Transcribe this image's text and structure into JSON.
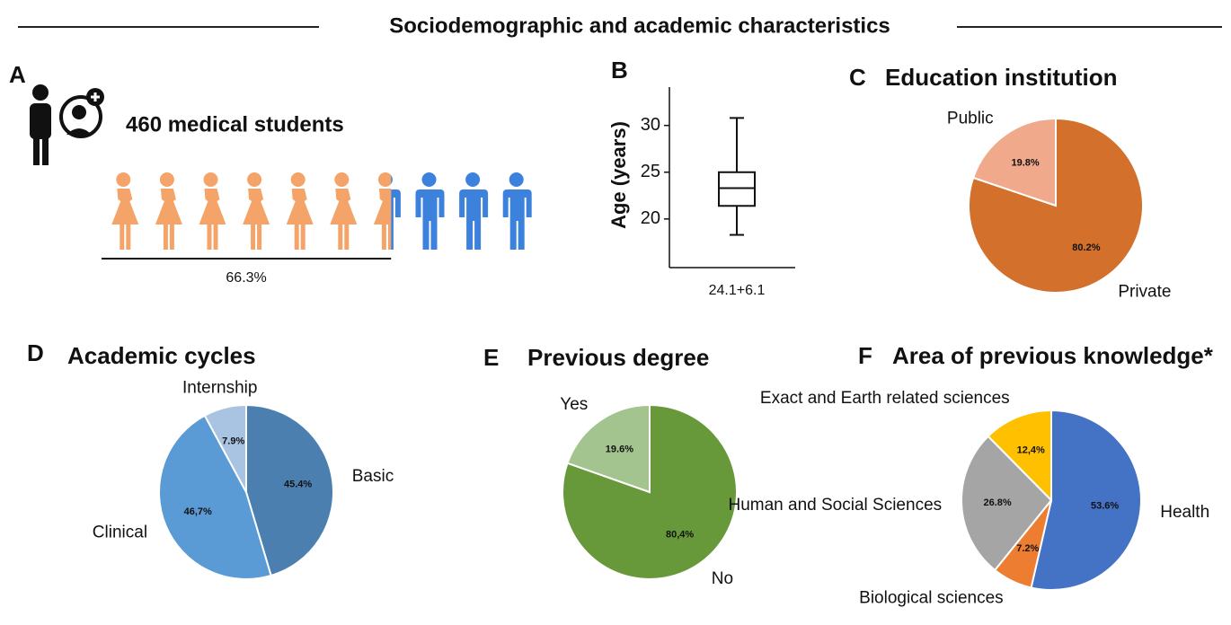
{
  "title": "Sociodemographic and academic characteristics",
  "chart_data": [
    {
      "type": "pictogram",
      "panel": "A",
      "title": "460 medical students",
      "values": [
        66.3
      ],
      "value_labels": [
        "66.3%"
      ],
      "colors": [
        "#f4a469",
        "#3c82dc"
      ]
    },
    {
      "type": "box",
      "panel": "B",
      "ylabel": "Age (years)",
      "annotation": "24.1+6.1",
      "boxes": [
        {
          "whislo": 18.3,
          "q1": 21.4,
          "med": 23.3,
          "q3": 25,
          "whishi": 30.8
        }
      ],
      "ylim": [
        14.8,
        34.1
      ],
      "yticks": [
        20,
        25,
        30
      ]
    },
    {
      "type": "pie",
      "panel": "C",
      "title": "Education institution",
      "categories": [
        "Private",
        "Public"
      ],
      "values": [
        80.2,
        19.8
      ],
      "value_labels": [
        "80.2%",
        "19.8%"
      ],
      "colors": [
        "#d2702c",
        "#f0a98a"
      ]
    },
    {
      "type": "pie",
      "panel": "D",
      "title": "Academic cycles",
      "categories": [
        "Basic",
        "Clinical",
        "Internship"
      ],
      "values": [
        45.4,
        46.7,
        7.9
      ],
      "value_labels": [
        "45.4%",
        "46,7%",
        "7.9%"
      ],
      "colors": [
        "#4a7fb0",
        "#5b9bd5",
        "#a9c3e2"
      ]
    },
    {
      "type": "pie",
      "panel": "E",
      "title": "Previous degree",
      "categories": [
        "No",
        "Yes"
      ],
      "values": [
        80.4,
        19.6
      ],
      "value_labels": [
        "80,4%",
        "19.6%"
      ],
      "colors": [
        "#67993a",
        "#a3c48e"
      ]
    },
    {
      "type": "pie",
      "panel": "F",
      "title": "Area of previous knowledge*",
      "categories": [
        "Health",
        "Biological sciences",
        "Human and Social Sciences",
        "Exact and Earth related sciences"
      ],
      "values": [
        53.6,
        7.2,
        26.8,
        12.4
      ],
      "value_labels": [
        "53.6%",
        "7.2%",
        "26.8%",
        "12,4%"
      ],
      "colors": [
        "#4472c4",
        "#ed7d31",
        "#a5a5a5",
        "#ffc000"
      ]
    }
  ]
}
